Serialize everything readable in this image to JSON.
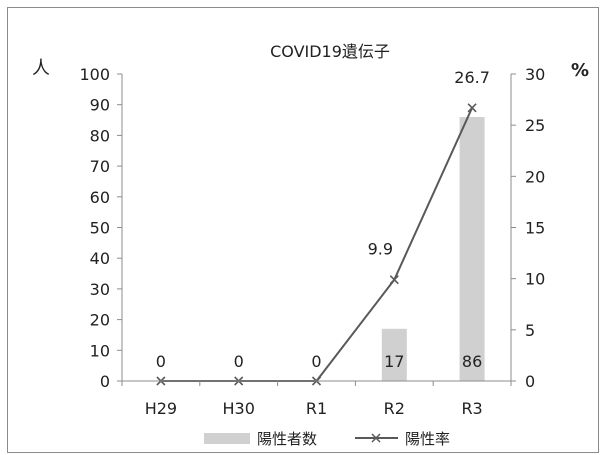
{
  "chart_data": {
    "type": "bar+line",
    "title": "COVID19遺伝子",
    "categories": [
      "H29",
      "H30",
      "R1",
      "R2",
      "R3"
    ],
    "left_axis": {
      "unit_label": "人",
      "range": [
        0,
        100
      ],
      "ticks": [
        0,
        10,
        20,
        30,
        40,
        50,
        60,
        70,
        80,
        90,
        100
      ]
    },
    "right_axis": {
      "unit_label": "%",
      "range": [
        0,
        30
      ],
      "ticks": [
        0,
        5,
        10,
        15,
        20,
        25,
        30
      ]
    },
    "series": [
      {
        "name": "陽性者数",
        "type": "bar",
        "axis": "left",
        "values": [
          0,
          0,
          0,
          17,
          86
        ],
        "data_labels": [
          "0",
          "0",
          "0",
          "17",
          "86"
        ]
      },
      {
        "name": "陽性率",
        "type": "line",
        "axis": "right",
        "values": [
          0,
          0,
          0,
          9.9,
          26.7
        ],
        "data_labels": [
          "",
          "",
          "",
          "9.9",
          "26.7"
        ]
      }
    ],
    "colors": {
      "bar": "#d0d0d0",
      "line": "#595959",
      "axis": "#8c8c8c"
    },
    "grid": false,
    "legend": "bottom"
  }
}
